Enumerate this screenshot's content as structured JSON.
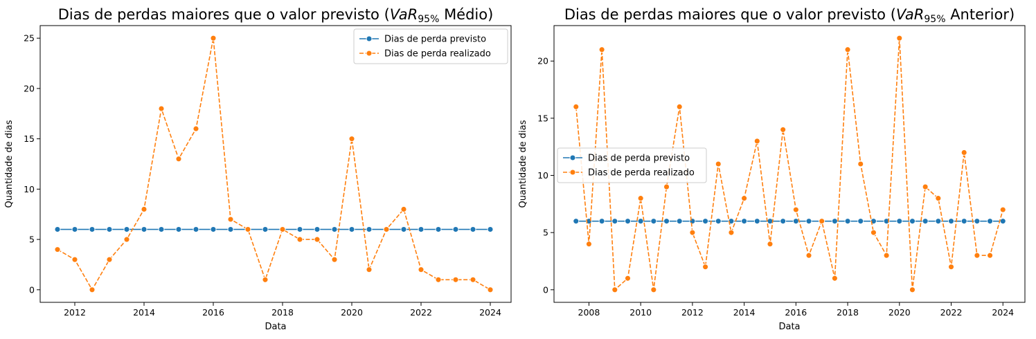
{
  "chart_data": [
    {
      "type": "line",
      "title": {
        "prefix": "Dias de perdas maiores que o valor previsto (",
        "var_symbol": "VaR",
        "subscript": "95%",
        "suffix": " Médio)"
      },
      "xlabel": "Data",
      "ylabel": "Quantidade de dias",
      "xlim": [
        2011.0,
        2024.6
      ],
      "ylim": [
        -1.25,
        26.25
      ],
      "xticks": [
        2012,
        2014,
        2016,
        2018,
        2020,
        2022,
        2024
      ],
      "yticks": [
        0,
        5,
        10,
        15,
        20,
        25
      ],
      "legend": "top-right",
      "x": [
        2011.5,
        2012.0,
        2012.5,
        2013.0,
        2013.5,
        2014.0,
        2014.5,
        2015.0,
        2015.5,
        2016.0,
        2016.5,
        2017.0,
        2017.5,
        2018.0,
        2018.5,
        2019.0,
        2019.5,
        2020.0,
        2020.5,
        2021.0,
        2021.5,
        2022.0,
        2022.5,
        2023.0,
        2023.5,
        2024.0
      ],
      "series": [
        {
          "name": "Dias de perda previsto",
          "color": "#1f77b4",
          "style": "solid",
          "values": [
            6,
            6,
            6,
            6,
            6,
            6,
            6,
            6,
            6,
            6,
            6,
            6,
            6,
            6,
            6,
            6,
            6,
            6,
            6,
            6,
            6,
            6,
            6,
            6,
            6,
            6
          ]
        },
        {
          "name": "Dias de perda realizado",
          "color": "#ff7f0e",
          "style": "dashed",
          "values": [
            4,
            3,
            0,
            3,
            5,
            8,
            18,
            13,
            16,
            25,
            7,
            6,
            1,
            6,
            5,
            5,
            3,
            15,
            2,
            6,
            8,
            2,
            1,
            1,
            1,
            0
          ]
        }
      ]
    },
    {
      "type": "line",
      "title": {
        "prefix": "Dias de perdas maiores que o valor previsto (",
        "var_symbol": "VaR",
        "subscript": "95%",
        "suffix": " Anterior)"
      },
      "xlabel": "Data",
      "ylabel": "Quantidade de dias",
      "xlim": [
        2006.65,
        2024.85
      ],
      "ylim": [
        -1.1,
        23.1
      ],
      "xticks": [
        2008,
        2010,
        2012,
        2014,
        2016,
        2018,
        2020,
        2022,
        2024
      ],
      "yticks": [
        0,
        5,
        10,
        15,
        20
      ],
      "legend": "center-left",
      "x": [
        2007.5,
        2008.0,
        2008.5,
        2009.0,
        2009.5,
        2010.0,
        2010.5,
        2011.0,
        2011.5,
        2012.0,
        2012.5,
        2013.0,
        2013.5,
        2014.0,
        2014.5,
        2015.0,
        2015.5,
        2016.0,
        2016.5,
        2017.0,
        2017.5,
        2018.0,
        2018.5,
        2019.0,
        2019.5,
        2020.0,
        2020.5,
        2021.0,
        2021.5,
        2022.0,
        2022.5,
        2023.0,
        2023.5,
        2024.0
      ],
      "series": [
        {
          "name": "Dias de perda previsto",
          "color": "#1f77b4",
          "style": "solid",
          "values": [
            6,
            6,
            6,
            6,
            6,
            6,
            6,
            6,
            6,
            6,
            6,
            6,
            6,
            6,
            6,
            6,
            6,
            6,
            6,
            6,
            6,
            6,
            6,
            6,
            6,
            6,
            6,
            6,
            6,
            6,
            6,
            6,
            6,
            6
          ]
        },
        {
          "name": "Dias de perda realizado",
          "color": "#ff7f0e",
          "style": "dashed",
          "values": [
            16,
            4,
            21,
            0,
            1,
            8,
            0,
            9,
            16,
            5,
            2,
            11,
            5,
            8,
            13,
            4,
            14,
            7,
            3,
            6,
            1,
            21,
            11,
            5,
            3,
            22,
            0,
            9,
            8,
            2,
            12,
            3,
            3,
            7
          ]
        }
      ]
    }
  ]
}
